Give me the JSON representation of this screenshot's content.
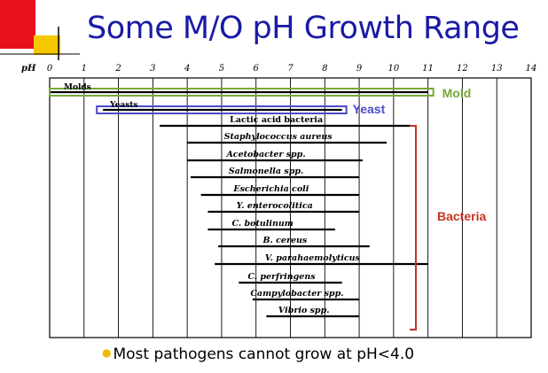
{
  "slide": {
    "title": "Some M/O pH Growth Range",
    "note": "Most pathogens cannot grow at pH<4.0",
    "colors": {
      "title": "#1a1aa6",
      "mold": "#76a83a",
      "yeast": "#4a4ac8",
      "bacteria": "#c8341e",
      "bullet": "#f2b800",
      "logo_red": "#e8101a",
      "logo_yellow": "#f7c800"
    }
  },
  "chart_data": {
    "type": "bar",
    "orientation": "horizontal-range",
    "xlabel": "pH",
    "xlim": [
      0,
      14
    ],
    "xticks": [
      "0",
      "1",
      "2",
      "3",
      "4",
      "5",
      "6",
      "7",
      "8",
      "9",
      "10",
      "11",
      "12",
      "13",
      "14"
    ],
    "grid": true,
    "ranges": [
      {
        "label": "Molds",
        "start": 0,
        "end": 11,
        "style": "outline-mold"
      },
      {
        "label": "Yeasts",
        "start": 1.5,
        "end": 8.5,
        "style": "outline-yeast"
      },
      {
        "label": "Lactic acid bacteria",
        "start": 3.2,
        "end": 10.5
      },
      {
        "label": "Staphylococcus aureus",
        "start": 4,
        "end": 9.8
      },
      {
        "label": "Acetobacter spp.",
        "start": 4,
        "end": 9.1
      },
      {
        "label": "Salmonella spp.",
        "start": 4.1,
        "end": 9.0
      },
      {
        "label": "Escherichia coli",
        "start": 4.4,
        "end": 9.0
      },
      {
        "label": "Y. enterocolitica",
        "start": 4.6,
        "end": 9.0
      },
      {
        "label": "C. botulinum",
        "start": 4.6,
        "end": 8.3
      },
      {
        "label": "B. cereus",
        "start": 4.9,
        "end": 9.3
      },
      {
        "label": "V. parahaemolyticus",
        "start": 4.8,
        "end": 11.0
      },
      {
        "label": "C. perfringens",
        "start": 5.5,
        "end": 8.5
      },
      {
        "label": "Campylobacter spp.",
        "start": 5.9,
        "end": 9.0
      },
      {
        "label": "Vibrio spp.",
        "start": 6.3,
        "end": 9.0
      }
    ],
    "annotations": [
      {
        "text": "Mold",
        "target": "Molds"
      },
      {
        "text": "Yeast",
        "target": "Yeasts"
      },
      {
        "text": "Bacteria",
        "group": "bacteria",
        "from": "Lactic acid bacteria",
        "to": "Vibrio spp."
      }
    ]
  }
}
